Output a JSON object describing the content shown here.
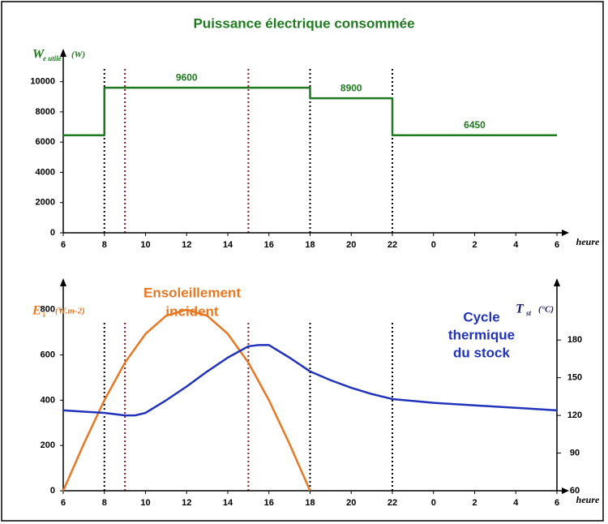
{
  "chart_data": [
    {
      "type": "line",
      "title": "Puissance électrique consommée",
      "ylabel": {
        "text": "W",
        "sub": "e utile",
        "unit": "(W)",
        "color": "#1f7a1f"
      },
      "xlabel": "heure",
      "xlim": [
        6,
        30
      ],
      "xticks": [
        6,
        8,
        10,
        12,
        14,
        16,
        18,
        20,
        22,
        {
          "value": 24,
          "label": "0"
        },
        {
          "value": 26,
          "label": "2"
        },
        {
          "value": 28,
          "label": "4"
        },
        {
          "value": 30,
          "label": "6"
        }
      ],
      "ylim": [
        0,
        11000
      ],
      "yticks": [
        0,
        2000,
        4000,
        6000,
        8000,
        10000
      ],
      "series": [
        {
          "color": "#1f7a1f",
          "x": [
            6,
            8,
            8,
            18,
            18,
            22,
            22,
            30
          ],
          "values": [
            6450,
            6450,
            9600,
            9600,
            8900,
            8900,
            6450,
            6450
          ]
        }
      ],
      "data_labels": [
        {
          "x": 12,
          "value": 9600
        },
        {
          "x": 20,
          "value": 8900
        },
        {
          "x": 26,
          "value": 6450
        }
      ],
      "vlines": [
        {
          "x": 8,
          "color": "#000000"
        },
        {
          "x": 9,
          "color": "#8b1a1a"
        },
        {
          "x": 15,
          "color": "#8b1a1a"
        },
        {
          "x": 18,
          "color": "#000000"
        },
        {
          "x": 22,
          "color": "#000000"
        }
      ]
    },
    {
      "type": "line",
      "ylabel": {
        "text": "E",
        "sub": "i",
        "unit": "(W.m-2)",
        "color": "#e87722"
      },
      "y2label": {
        "text": "T",
        "sub": "st",
        "unit": "(°C)",
        "color": "#1a1a6e"
      },
      "xlabel": "heure",
      "xlim": [
        6,
        30
      ],
      "xticks": [
        6,
        8,
        10,
        12,
        14,
        16,
        18,
        20,
        22,
        {
          "value": 24,
          "label": "0"
        },
        {
          "value": 26,
          "label": "2"
        },
        {
          "value": 28,
          "label": "4"
        },
        {
          "value": 30,
          "label": "6"
        }
      ],
      "ylim": [
        0,
        860
      ],
      "yticks": [
        0,
        200,
        400,
        600,
        800
      ],
      "y2lim": [
        60,
        215
      ],
      "y2ticks": [
        60,
        90,
        120,
        150,
        180
      ],
      "series": [
        {
          "label_lines": [
            "Ensoleillement",
            "incident"
          ],
          "color": "#e87722",
          "x": [
            6,
            7,
            8,
            9,
            10,
            11,
            12,
            13,
            14,
            15,
            16,
            17,
            18
          ],
          "values": [
            0,
            207,
            400,
            566,
            693,
            773,
            800,
            773,
            693,
            566,
            400,
            207,
            0
          ]
        },
        {
          "label_lines": [
            "Cycle",
            "thermique",
            "du stock"
          ],
          "color": "#2233bb",
          "axis": "y2",
          "x": [
            6,
            7,
            8,
            9,
            9.5,
            10,
            11,
            12,
            13,
            14,
            15,
            15.5,
            16,
            17,
            18,
            19,
            20,
            21,
            22,
            24,
            26,
            28,
            30
          ],
          "values": [
            124,
            123,
            122,
            120,
            120,
            122,
            132,
            143,
            155,
            166,
            175,
            176,
            176,
            166,
            155,
            148,
            142,
            137,
            133,
            130,
            128,
            126,
            124
          ]
        }
      ],
      "vlines": [
        {
          "x": 8,
          "color": "#000000"
        },
        {
          "x": 9,
          "color": "#8b1a1a"
        },
        {
          "x": 15,
          "color": "#8b1a1a"
        },
        {
          "x": 18,
          "color": "#000000"
        },
        {
          "x": 22,
          "color": "#000000"
        }
      ]
    }
  ]
}
